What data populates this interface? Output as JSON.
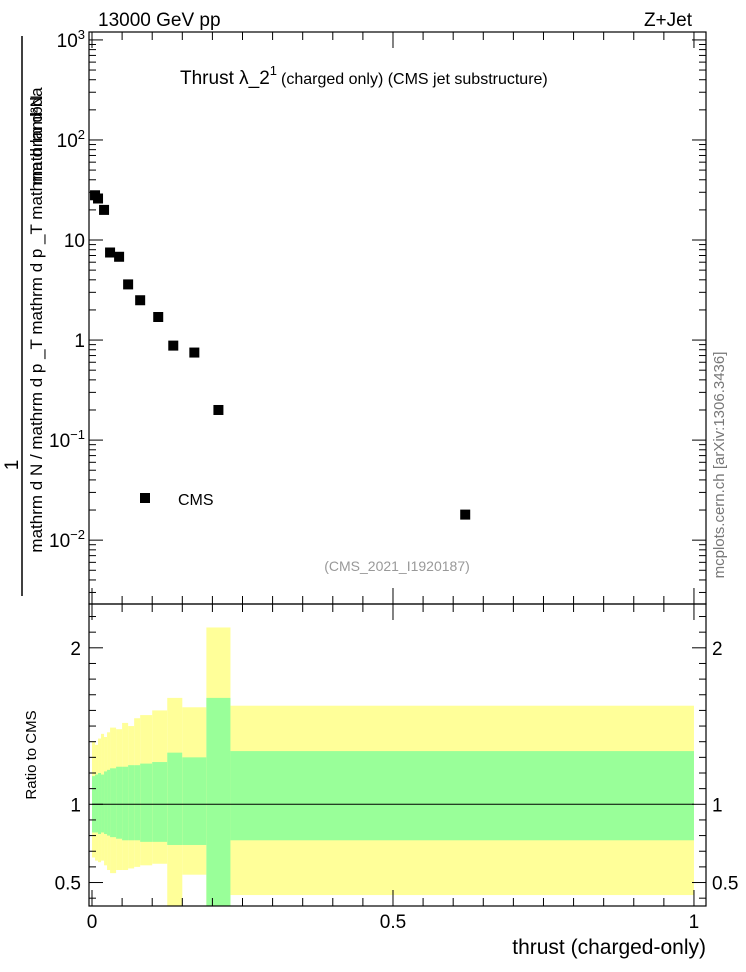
{
  "header": {
    "energy_label": "13000 GeV pp",
    "process_label": "Z+Jet",
    "side_label": "mcplots.cern.ch [arXiv:1306.3436]"
  },
  "colors": {
    "band_outer": "#ffff99",
    "band_inner": "#99ff99",
    "marker": "#000000",
    "analysis_text": "#999999"
  },
  "chart_data": [
    {
      "type": "scatter",
      "panel": "main",
      "title_prefix": "Thrust λ_2",
      "title_sup": "1",
      "title_suffix": "(charged only) (CMS jet substructure)",
      "analysis_id": "(CMS_2021_I1920187)",
      "ylabel_numerator": "1",
      "ylabel_denominator_lines": [
        "mathrm d N / mathrm d p _T mathrm d p _T mathrm d lambda",
        "mathrm d²N"
      ],
      "yscale": "log",
      "ylim": [
        0.0023,
        1200
      ],
      "xlim": [
        -0.005,
        1.02
      ],
      "y_ticks": [
        {
          "value": 1000,
          "base": "10",
          "exp": "3"
        },
        {
          "value": 100,
          "base": "10",
          "exp": "2"
        },
        {
          "value": 10,
          "base": "10",
          "exp": ""
        },
        {
          "value": 1,
          "base": "1",
          "exp": ""
        },
        {
          "value": 0.1,
          "base": "10",
          "exp": "−1"
        },
        {
          "value": 0.01,
          "base": "10",
          "exp": "−2"
        }
      ],
      "legend": {
        "label": "CMS",
        "position": "bottom-left"
      },
      "series": [
        {
          "name": "CMS",
          "x": [
            0.005,
            0.01,
            0.02,
            0.03,
            0.045,
            0.06,
            0.08,
            0.11,
            0.135,
            0.17,
            0.21,
            0.62
          ],
          "y": [
            28,
            26,
            20,
            7.5,
            6.8,
            3.6,
            2.5,
            1.7,
            0.88,
            0.75,
            0.2,
            0.018
          ]
        }
      ]
    },
    {
      "type": "area",
      "panel": "ratio",
      "ylabel": "Ratio to CMS",
      "xlabel": "thrust (charged-only)",
      "ylim": [
        0.35,
        2.28
      ],
      "xlim": [
        -0.005,
        1.02
      ],
      "y_ticks": [
        2,
        1,
        0.5
      ],
      "y_tick_labels": [
        "2",
        "1",
        "0.5"
      ],
      "x_ticks": [
        0,
        0.5,
        1
      ],
      "x_tick_labels": [
        "0",
        "0.5",
        "1"
      ],
      "reference_line": 1,
      "bins": [
        0,
        0.005,
        0.01,
        0.015,
        0.02,
        0.025,
        0.03,
        0.04,
        0.05,
        0.06,
        0.07,
        0.08,
        0.1,
        0.125,
        0.15,
        0.19,
        0.23,
        1.0
      ],
      "inner_band": {
        "name": "stat",
        "lo": [
          0.82,
          0.82,
          0.81,
          0.82,
          0.81,
          0.8,
          0.79,
          0.78,
          0.77,
          0.77,
          0.77,
          0.76,
          0.76,
          0.74,
          0.74,
          0.35,
          0.77
        ],
        "hi": [
          1.18,
          1.19,
          1.2,
          1.19,
          1.21,
          1.22,
          1.23,
          1.24,
          1.24,
          1.25,
          1.25,
          1.26,
          1.27,
          1.33,
          1.3,
          1.68,
          1.34
        ]
      },
      "outer_band": {
        "name": "total",
        "lo": [
          0.66,
          0.64,
          0.63,
          0.64,
          0.61,
          0.58,
          0.56,
          0.58,
          0.58,
          0.59,
          0.6,
          0.61,
          0.62,
          0.35,
          0.55,
          0.35,
          0.42
        ],
        "hi": [
          1.4,
          1.38,
          1.42,
          1.45,
          1.43,
          1.46,
          1.49,
          1.48,
          1.52,
          1.5,
          1.55,
          1.57,
          1.6,
          1.68,
          1.62,
          2.13,
          1.63
        ]
      }
    }
  ]
}
